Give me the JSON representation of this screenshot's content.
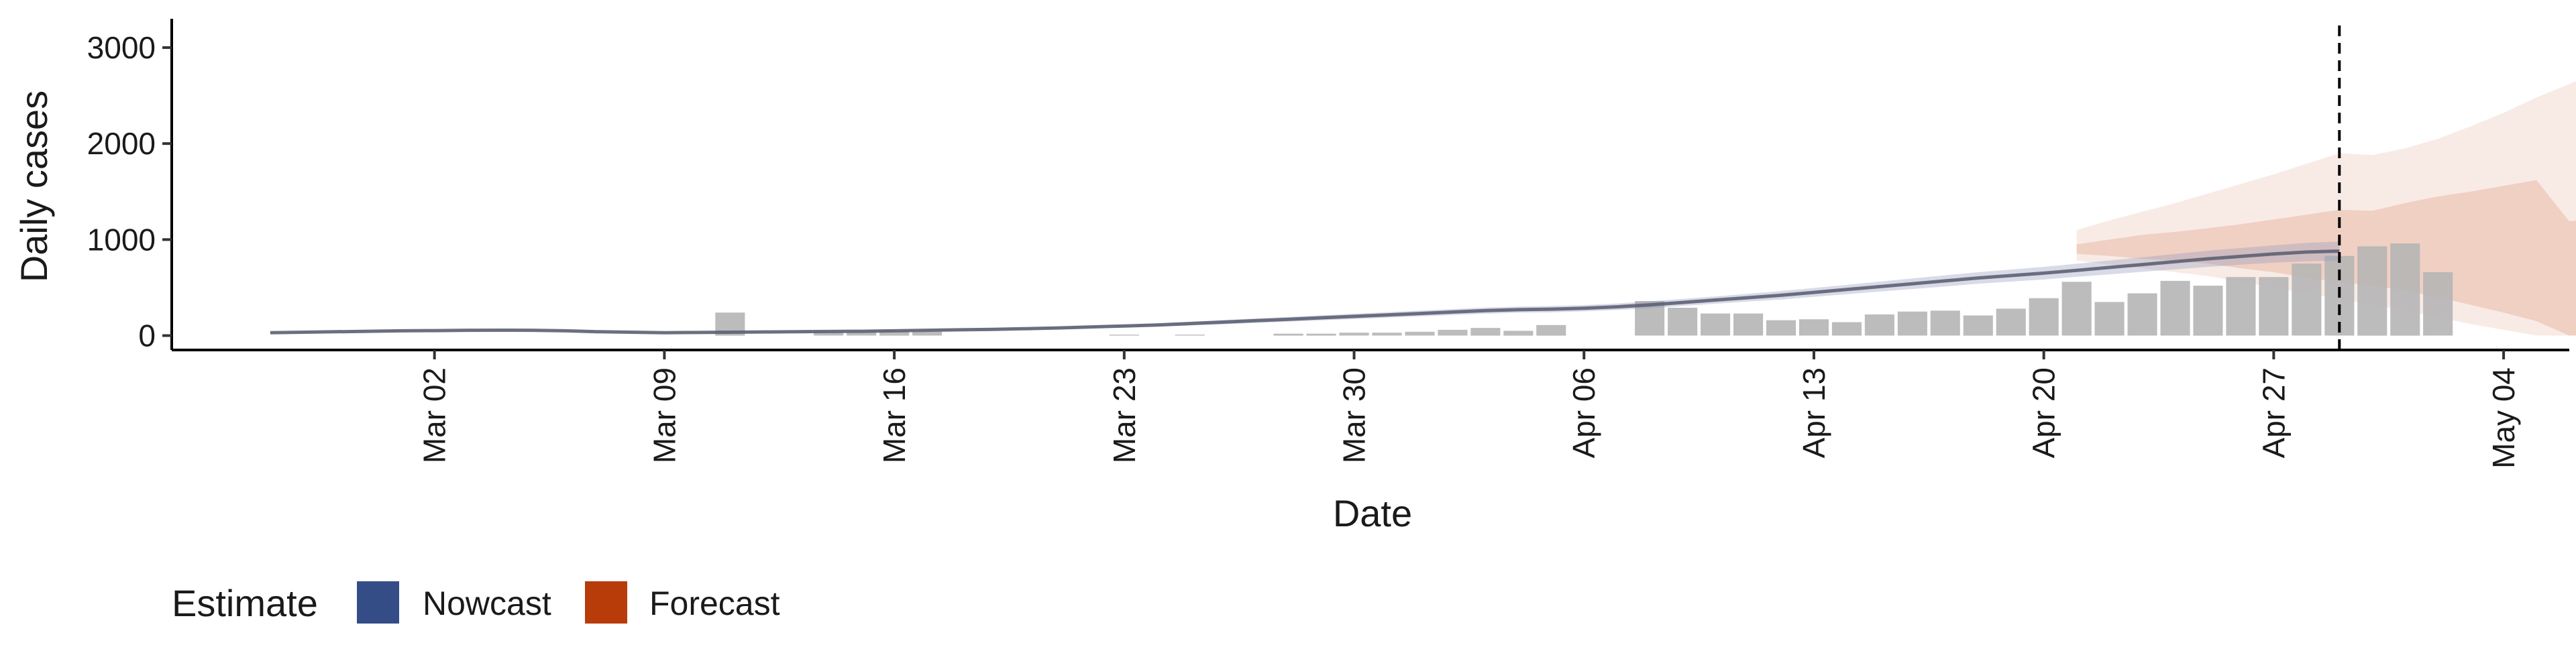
{
  "chart_data": {
    "type": "bar",
    "title": "",
    "xlabel": "Date",
    "ylabel": "Daily cases",
    "x_ticks": [
      "Mar 02",
      "Mar 09",
      "Mar 16",
      "Mar 23",
      "Mar 30",
      "Apr 06",
      "Apr 13",
      "Apr 20",
      "Apr 27",
      "May 04"
    ],
    "y_ticks": [
      "0",
      "1000",
      "2000",
      "3000"
    ],
    "ylim": [
      -150,
      3300
    ],
    "xlim": [
      "2020-02-23",
      "2020-05-06"
    ],
    "grid": false,
    "x_tick_label_rotation": "vertical",
    "dashed_vline": "2020-04-29",
    "legend": {
      "title": "Estimate",
      "position": "bottom-left",
      "items": [
        {
          "label": "Nowcast",
          "color": "#344d86"
        },
        {
          "label": "Forecast",
          "color": "#b83b0a"
        }
      ]
    },
    "colors": {
      "observed_bars": "#b5b5b5",
      "nowcast_line": "#5d6173",
      "nowcast_band": "#8e97b9",
      "forecast_band": "#e1a58c"
    },
    "observed_cases": {
      "start": "2020-03-11",
      "values": [
        240,
        0,
        0,
        40,
        40,
        50,
        40,
        0,
        0,
        0,
        0,
        0,
        10,
        0,
        10,
        0,
        0,
        20,
        20,
        30,
        30,
        40,
        60,
        80,
        50,
        110,
        0,
        0,
        360,
        290,
        230,
        230,
        160,
        170,
        140,
        220,
        250,
        260,
        210,
        280,
        390,
        560,
        350,
        440,
        570,
        520,
        610,
        610,
        750,
        830,
        930,
        960,
        660
      ]
    },
    "nowcast": {
      "start": "2020-02-26",
      "median": [
        30,
        35,
        40,
        45,
        50,
        52,
        55,
        56,
        55,
        50,
        40,
        35,
        30,
        32,
        35,
        38,
        40,
        43,
        45,
        50,
        55,
        60,
        65,
        72,
        80,
        90,
        100,
        110,
        125,
        140,
        155,
        170,
        185,
        200,
        215,
        230,
        245,
        260,
        270,
        275,
        285,
        300,
        320,
        345,
        370,
        395,
        420,
        450,
        480,
        510,
        540,
        570,
        600,
        625,
        650,
        680,
        710,
        740,
        770,
        800,
        825,
        850,
        870,
        880
      ],
      "upper": [
        35,
        40,
        45,
        50,
        55,
        57,
        60,
        61,
        60,
        55,
        45,
        40,
        35,
        37,
        40,
        43,
        46,
        49,
        52,
        58,
        64,
        70,
        76,
        84,
        93,
        104,
        116,
        128,
        145,
        162,
        178,
        195,
        212,
        228,
        244,
        260,
        276,
        292,
        302,
        308,
        318,
        334,
        356,
        382,
        408,
        436,
        464,
        496,
        528,
        562,
        595,
        628,
        660,
        688,
        716,
        748,
        782,
        816,
        850,
        884,
        912,
        940,
        965,
        980
      ],
      "lower": [
        25,
        30,
        35,
        40,
        45,
        47,
        50,
        51,
        50,
        45,
        35,
        30,
        25,
        27,
        30,
        33,
        34,
        37,
        38,
        42,
        46,
        50,
        54,
        60,
        67,
        76,
        84,
        92,
        105,
        118,
        132,
        145,
        158,
        172,
        186,
        200,
        214,
        228,
        238,
        242,
        252,
        266,
        284,
        308,
        332,
        354,
        376,
        404,
        432,
        458,
        485,
        512,
        540,
        562,
        584,
        612,
        638,
        664,
        690,
        716,
        738,
        760,
        775,
        780
      ]
    },
    "forecast": {
      "start": "2020-04-21",
      "outer_upper": [
        1100,
        1200,
        1290,
        1380,
        1480,
        1580,
        1680,
        1790,
        1900,
        1880,
        1950,
        2050,
        2180,
        2320,
        2480,
        2620,
        2760,
        2900,
        3020,
        3130
      ],
      "outer_lower": [
        780,
        740,
        700,
        660,
        620,
        560,
        500,
        440,
        380,
        320,
        260,
        190,
        120,
        60,
        0,
        0,
        0,
        0,
        0,
        0
      ],
      "inner_upper": [
        950,
        1000,
        1050,
        1080,
        1120,
        1160,
        1210,
        1260,
        1310,
        1300,
        1380,
        1450,
        1500,
        1560,
        1620,
        1190,
        1220,
        1220,
        1220,
        1220
      ],
      "inner_lower": [
        850,
        830,
        800,
        780,
        750,
        700,
        660,
        600,
        560,
        520,
        470,
        400,
        320,
        240,
        150,
        0,
        0,
        0,
        0,
        0
      ]
    }
  }
}
